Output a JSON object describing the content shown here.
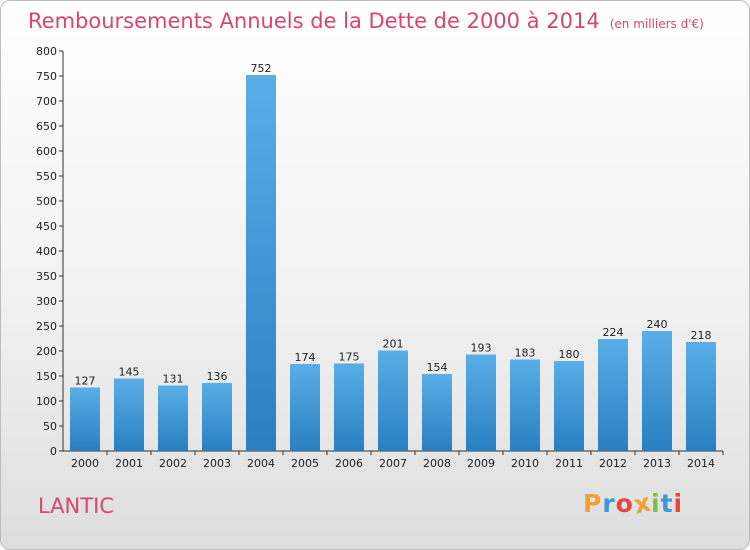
{
  "header": {
    "title": "Remboursements Annuels de la Dette de 2000 à 2014",
    "subtitle": "(en milliers d'€)"
  },
  "footer": {
    "commune": "LANTIC",
    "logo_letters": [
      "P",
      "r",
      "o",
      "x",
      "i",
      "t",
      "i"
    ],
    "logo_colors": [
      "#f0a030",
      "#3a9ad9",
      "#e8463c",
      "#f0a030",
      "#7ac143",
      "#3a9ad9",
      "#e8463c"
    ]
  },
  "colors": {
    "bar_top": "#5aaee8",
    "bar_bottom": "#2a7fc0",
    "accent_text": "#d8456e"
  },
  "chart_data": {
    "type": "bar",
    "categories": [
      "2000",
      "2001",
      "2002",
      "2003",
      "2004",
      "2005",
      "2006",
      "2007",
      "2008",
      "2009",
      "2010",
      "2011",
      "2012",
      "2013",
      "2014"
    ],
    "values": [
      127,
      145,
      131,
      136,
      752,
      174,
      175,
      201,
      154,
      193,
      183,
      180,
      224,
      240,
      218
    ],
    "title": "Remboursements Annuels de la Dette de 2000 à 2014",
    "xlabel": "",
    "ylabel": "",
    "ylim": [
      0,
      800
    ],
    "yticks": [
      0,
      50,
      100,
      150,
      200,
      250,
      300,
      350,
      400,
      450,
      500,
      550,
      600,
      650,
      700,
      750,
      800
    ],
    "grid": false,
    "legend": "none"
  }
}
